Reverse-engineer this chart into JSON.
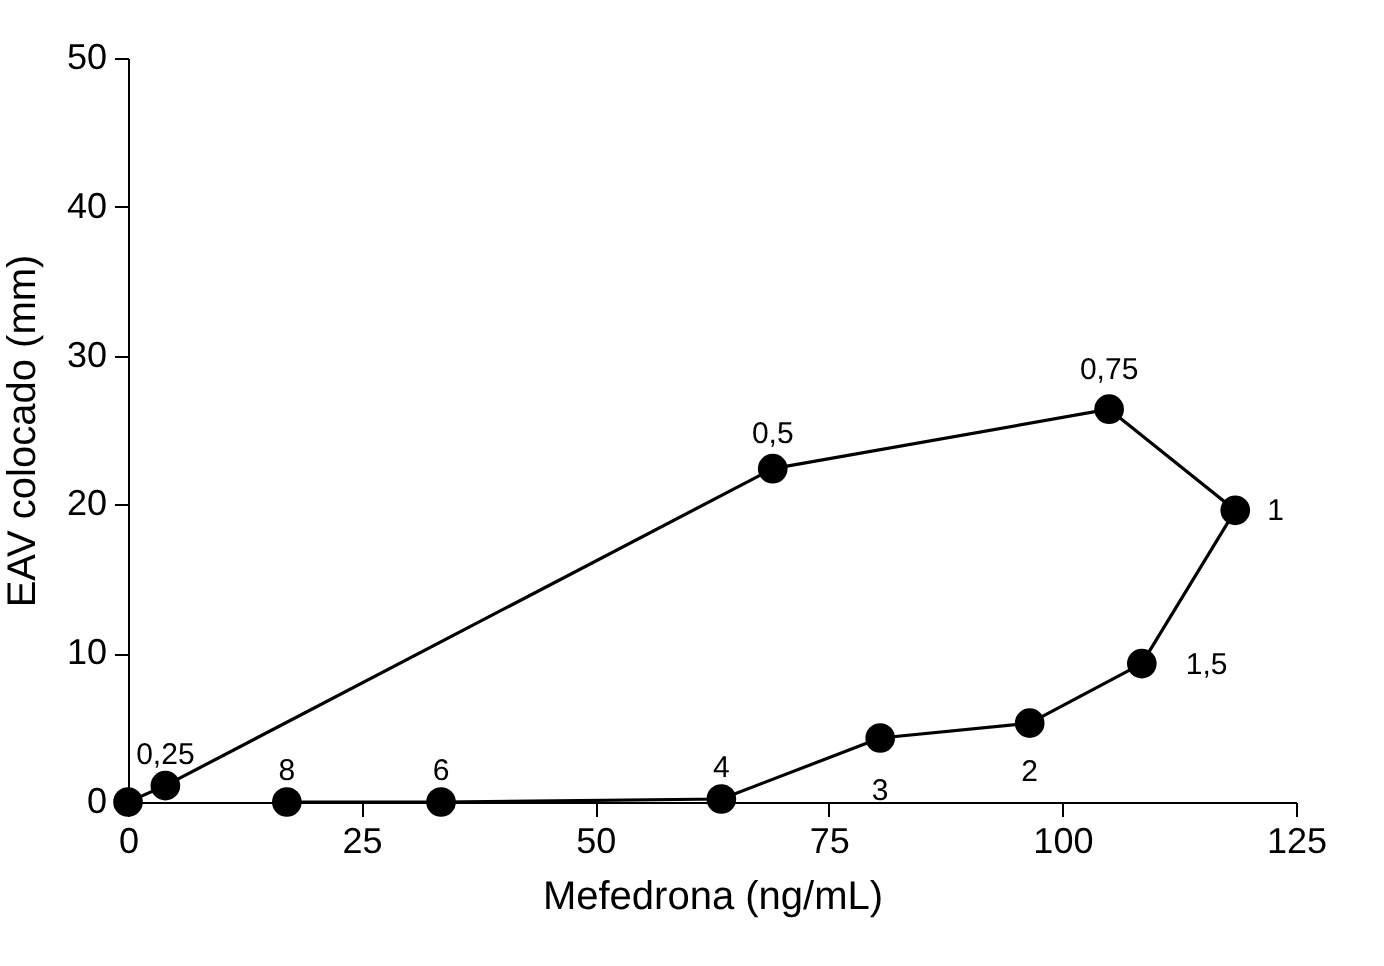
{
  "chart_data": {
    "type": "line",
    "xlabel": "Mefedrona (ng/mL)",
    "ylabel": "EAV colocado (mm)",
    "xlim": [
      0,
      125
    ],
    "xticks": [
      0,
      25,
      50,
      75,
      100,
      125
    ],
    "ylim": [
      0,
      50
    ],
    "yticks": [
      0,
      10,
      20,
      30,
      40,
      50
    ],
    "grid": false,
    "marker": "circle",
    "line_style": "solid",
    "series": [
      {
        "color": "#000000",
        "x": [
          0,
          4,
          69,
          105,
          118.5,
          108.5,
          96.5,
          80.5,
          63.5,
          33.5,
          17
        ],
        "values": [
          0,
          1.1,
          22.4,
          26.4,
          19.6,
          9.3,
          5.3,
          4.3,
          0.2,
          0,
          0
        ]
      }
    ],
    "annotations": [
      {
        "text": "0,25",
        "x": 4,
        "y": 1.1
      },
      {
        "text": "0,5",
        "x": 69,
        "y": 22.4
      },
      {
        "text": "0,75",
        "x": 105,
        "y": 26.4
      },
      {
        "text": "1",
        "x": 118.5,
        "y": 19.6
      },
      {
        "text": "1,5",
        "x": 108.5,
        "y": 9.3
      },
      {
        "text": "2",
        "x": 96.5,
        "y": 5.3
      },
      {
        "text": "3",
        "x": 80.5,
        "y": 4.3
      },
      {
        "text": "4",
        "x": 63.5,
        "y": 0.2
      },
      {
        "text": "6",
        "x": 33.5,
        "y": 0
      },
      {
        "text": "8",
        "x": 17,
        "y": 0
      }
    ]
  }
}
